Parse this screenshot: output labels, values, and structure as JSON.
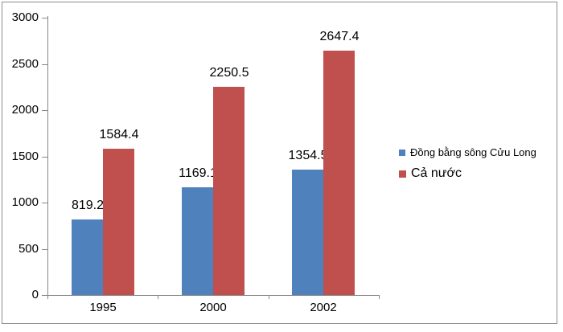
{
  "chart_data": {
    "type": "bar",
    "title": "",
    "categories": [
      "1995",
      "2000",
      "2002"
    ],
    "series": [
      {
        "name": "Đồng bằng sông Cửu Long",
        "color": "#4F81BD",
        "values": [
          819.2,
          1169.1,
          1354.5
        ]
      },
      {
        "name": "Cả nước",
        "color": "#C0504D",
        "values": [
          1584.4,
          2250.5,
          2647.4
        ]
      }
    ],
    "data_labels": true,
    "ylim": [
      0,
      3000
    ],
    "ytick_values": [
      0,
      500,
      1000,
      1500,
      2000,
      2500,
      3000
    ],
    "xlabel": "",
    "ylabel": "",
    "grid": false,
    "legend_position": "right",
    "axis_color": "#878787",
    "border_color": "#8C8C8C",
    "text_color": "#000000",
    "background_color": "#FFFFFF"
  }
}
